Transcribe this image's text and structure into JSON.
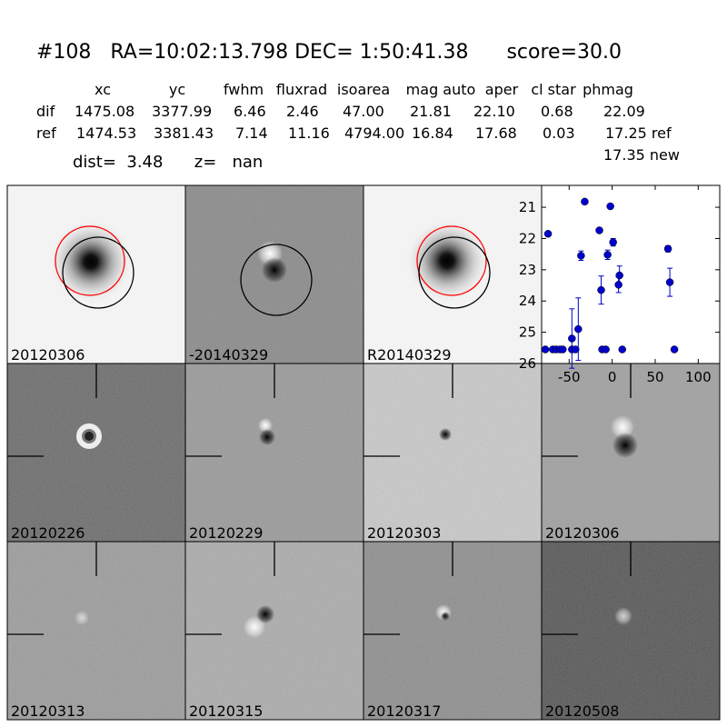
{
  "header": {
    "title": "#108   RA=10:02:13.798 DEC= 1:50:41.38      score=30.0"
  },
  "table": {
    "columns": [
      "xc",
      "yc",
      "fwhm",
      "fluxrad",
      "isoarea",
      "mag auto",
      "aper",
      "cl star",
      "phmag"
    ],
    "rows": [
      [
        "dif",
        "1475.08",
        "3377.99",
        "6.46",
        "2.46",
        "47.00",
        "21.81",
        "22.10",
        "0.68",
        "22.09"
      ],
      [
        "ref",
        "1474.53",
        "3381.43",
        "7.14",
        "11.16",
        "4794.00",
        "16.84",
        "17.68",
        "0.03",
        "17.25 ref"
      ]
    ],
    "extra": "17.35 new",
    "dist_line": "dist=  3.48      z=   nan"
  },
  "panels": [
    {
      "label": "20120306",
      "label_color": "#000000"
    },
    {
      "label": "-20140329",
      "label_color": "#000000"
    },
    {
      "label": "R20140329",
      "label_color": "#000000"
    },
    {
      "label": "20120226",
      "label_color": "#000000"
    },
    {
      "label": "20120229",
      "label_color": "#000000"
    },
    {
      "label": "20120303",
      "label_color": "#000000"
    },
    {
      "label": "20120306",
      "label_color": "#ff0000"
    },
    {
      "label": "20120313",
      "label_color": "#000000"
    },
    {
      "label": "20120315",
      "label_color": "#000000"
    },
    {
      "label": "20120317",
      "label_color": "#000000"
    },
    {
      "label": "20120508",
      "label_color": "#000000"
    }
  ],
  "chart_data": {
    "type": "scatter",
    "color": "#0000cc",
    "x": [
      -77.7,
      -74.5,
      -69,
      -65,
      -60.6,
      -57.4,
      -46.8,
      -46.8,
      -42.6,
      -39.4,
      -36.2,
      -31.9,
      -14.9,
      -12.8,
      -11.7,
      -7.4,
      -5.3,
      -2.1,
      1.1,
      7.4,
      8.5,
      11.7,
      64.9,
      67,
      72.3
    ],
    "values": [
      25.55,
      21.85,
      25.55,
      25.55,
      25.55,
      25.55,
      25.2,
      25.55,
      25.55,
      24.9,
      22.55,
      20.82,
      21.74,
      23.65,
      25.55,
      25.55,
      22.52,
      20.97,
      22.12,
      23.48,
      23.18,
      25.55,
      22.33,
      23.4,
      25.55
    ],
    "errors": [
      null,
      null,
      null,
      null,
      null,
      null,
      0.95,
      null,
      null,
      1.0,
      0.15,
      null,
      null,
      0.45,
      null,
      null,
      0.15,
      null,
      0.12,
      0.25,
      0.3,
      null,
      0.1,
      0.45,
      null
    ],
    "xlim": [
      -82,
      125
    ],
    "ylim": [
      26,
      20.3
    ],
    "xticks": [
      -50,
      0,
      50,
      100
    ],
    "yticks": [
      21,
      22,
      23,
      24,
      25,
      26
    ]
  }
}
